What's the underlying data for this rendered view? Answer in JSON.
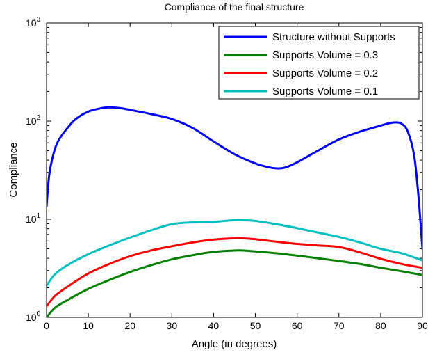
{
  "chart_data": {
    "type": "line",
    "title": "Compliance of the final structure",
    "xlabel": "Angle (in degrees)",
    "ylabel": "Compliance",
    "xlim": [
      0,
      90
    ],
    "ylim": [
      1,
      1000
    ],
    "yscale": "log",
    "xticks": [
      0,
      10,
      20,
      30,
      40,
      50,
      60,
      70,
      80,
      90
    ],
    "yticks": [
      {
        "base": "10",
        "exp": "0",
        "value": 1
      },
      {
        "base": "10",
        "exp": "1",
        "value": 10
      },
      {
        "base": "10",
        "exp": "2",
        "value": 100
      },
      {
        "base": "10",
        "exp": "3",
        "value": 1000
      }
    ],
    "grid": false,
    "legend_position": "top-right",
    "series": [
      {
        "name": "Structure without Supports",
        "color": "#0000ff",
        "x": [
          0,
          0.5,
          1,
          2,
          3,
          5,
          7,
          10,
          13,
          15,
          18,
          20,
          25,
          30,
          35,
          40,
          45,
          50,
          53,
          55,
          57,
          60,
          65,
          70,
          75,
          78,
          80,
          82,
          83.5,
          85,
          86.5,
          88,
          89,
          90
        ],
        "y": [
          13.5,
          25,
          35,
          52,
          65,
          85,
          105,
          125,
          135,
          138,
          135,
          130,
          118,
          105,
          85,
          62,
          46,
          37,
          34,
          33,
          33.5,
          38,
          50,
          65,
          78,
          85,
          90,
          95,
          97,
          94,
          78,
          45,
          18,
          5
        ]
      },
      {
        "name": "Supports Volume = 0.3",
        "color": "#008000",
        "x": [
          0,
          2,
          5,
          10,
          15,
          20,
          25,
          30,
          35,
          40,
          45,
          47,
          50,
          55,
          60,
          65,
          70,
          75,
          80,
          85,
          90
        ],
        "y": [
          1.0,
          1.25,
          1.5,
          1.95,
          2.4,
          2.9,
          3.4,
          3.9,
          4.3,
          4.65,
          4.8,
          4.8,
          4.7,
          4.5,
          4.25,
          4.0,
          3.75,
          3.5,
          3.2,
          2.95,
          2.7
        ]
      },
      {
        "name": "Supports Volume = 0.2",
        "color": "#ff0000",
        "x": [
          0,
          2,
          5,
          10,
          15,
          20,
          25,
          30,
          35,
          40,
          45,
          48,
          50,
          55,
          60,
          65,
          70,
          75,
          80,
          85,
          90
        ],
        "y": [
          1.3,
          1.65,
          2.05,
          2.8,
          3.5,
          4.2,
          4.8,
          5.3,
          5.8,
          6.2,
          6.4,
          6.35,
          6.25,
          5.9,
          5.6,
          5.4,
          5.2,
          4.6,
          3.95,
          3.5,
          3.2
        ]
      },
      {
        "name": "Supports Volume = 0.1",
        "color": "#00bfbf",
        "x": [
          0,
          2,
          5,
          10,
          15,
          20,
          25,
          30,
          35,
          40,
          45,
          47,
          50,
          55,
          60,
          65,
          70,
          75,
          80,
          85,
          90
        ],
        "y": [
          2.1,
          2.75,
          3.4,
          4.4,
          5.4,
          6.5,
          7.7,
          8.9,
          9.3,
          9.4,
          9.8,
          9.8,
          9.6,
          8.9,
          8.1,
          7.3,
          6.6,
          5.8,
          5.0,
          4.5,
          3.8
        ]
      }
    ]
  }
}
